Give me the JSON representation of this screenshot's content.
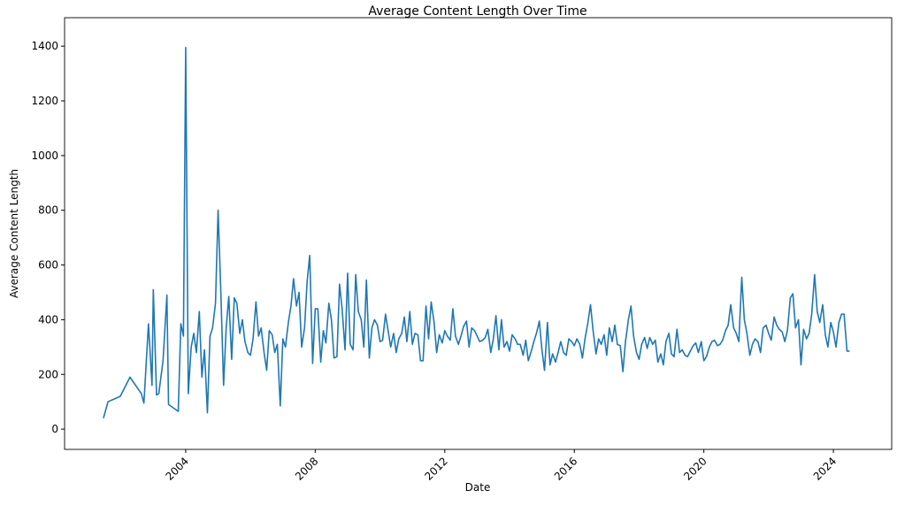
{
  "chart_data": {
    "type": "line",
    "title": "Average Content Length Over Time",
    "x_label": "Date",
    "y_label": "Average Content Length",
    "color": "#1f77b4",
    "x": [
      2001.46,
      2001.6,
      2001.98,
      2002.28,
      2002.63,
      2002.71,
      2002.85,
      2002.96,
      2003.0,
      2003.1,
      2003.17,
      2003.3,
      2003.42,
      2003.47,
      2003.77,
      2003.85,
      2003.93,
      2004.0,
      2004.08,
      2004.17,
      2004.25,
      2004.33,
      2004.42,
      2004.5,
      2004.58,
      2004.67,
      2004.75,
      2004.83,
      2004.92,
      2005.0,
      2005.08,
      2005.17,
      2005.25,
      2005.33,
      2005.42,
      2005.5,
      2005.58,
      2005.67,
      2005.75,
      2005.83,
      2005.92,
      2006.0,
      2006.08,
      2006.17,
      2006.25,
      2006.33,
      2006.42,
      2006.5,
      2006.58,
      2006.67,
      2006.75,
      2006.83,
      2006.92,
      2007.0,
      2007.08,
      2007.17,
      2007.25,
      2007.33,
      2007.42,
      2007.5,
      2007.58,
      2007.67,
      2007.75,
      2007.83,
      2007.92,
      2008.0,
      2008.08,
      2008.17,
      2008.25,
      2008.33,
      2008.42,
      2008.5,
      2008.58,
      2008.67,
      2008.75,
      2008.83,
      2008.92,
      2009.0,
      2009.08,
      2009.17,
      2009.25,
      2009.33,
      2009.42,
      2009.5,
      2009.58,
      2009.67,
      2009.75,
      2009.83,
      2009.92,
      2010.0,
      2010.08,
      2010.17,
      2010.25,
      2010.33,
      2010.42,
      2010.5,
      2010.58,
      2010.67,
      2010.75,
      2010.83,
      2010.92,
      2011.0,
      2011.08,
      2011.17,
      2011.25,
      2011.33,
      2011.42,
      2011.5,
      2011.58,
      2011.67,
      2011.75,
      2011.83,
      2011.92,
      2012.0,
      2012.08,
      2012.17,
      2012.25,
      2012.33,
      2012.42,
      2012.5,
      2012.58,
      2012.67,
      2012.75,
      2012.83,
      2012.92,
      2013.0,
      2013.08,
      2013.17,
      2013.25,
      2013.33,
      2013.42,
      2013.5,
      2013.58,
      2013.67,
      2013.75,
      2013.83,
      2013.92,
      2014.0,
      2014.08,
      2014.17,
      2014.25,
      2014.33,
      2014.42,
      2014.5,
      2014.58,
      2014.67,
      2014.75,
      2014.83,
      2014.92,
      2015.0,
      2015.08,
      2015.17,
      2015.25,
      2015.33,
      2015.42,
      2015.5,
      2015.58,
      2015.67,
      2015.75,
      2015.83,
      2015.92,
      2016.0,
      2016.08,
      2016.17,
      2016.25,
      2016.33,
      2016.42,
      2016.5,
      2016.58,
      2016.67,
      2016.75,
      2016.83,
      2016.92,
      2017.0,
      2017.08,
      2017.17,
      2017.25,
      2017.33,
      2017.42,
      2017.5,
      2017.58,
      2017.67,
      2017.75,
      2017.83,
      2017.92,
      2018.0,
      2018.08,
      2018.17,
      2018.25,
      2018.33,
      2018.42,
      2018.5,
      2018.58,
      2018.67,
      2018.75,
      2018.83,
      2018.92,
      2019.0,
      2019.08,
      2019.17,
      2019.25,
      2019.33,
      2019.42,
      2019.5,
      2019.58,
      2019.67,
      2019.75,
      2019.83,
      2019.92,
      2020.0,
      2020.08,
      2020.17,
      2020.25,
      2020.33,
      2020.42,
      2020.5,
      2020.58,
      2020.67,
      2020.75,
      2020.83,
      2020.92,
      2021.0,
      2021.08,
      2021.17,
      2021.25,
      2021.33,
      2021.42,
      2021.5,
      2021.58,
      2021.67,
      2021.75,
      2021.83,
      2021.92,
      2022.0,
      2022.08,
      2022.17,
      2022.25,
      2022.33,
      2022.42,
      2022.5,
      2022.58,
      2022.67,
      2022.75,
      2022.83,
      2022.92,
      2023.0,
      2023.08,
      2023.17,
      2023.25,
      2023.33,
      2023.42,
      2023.5,
      2023.58,
      2023.67,
      2023.75,
      2023.83,
      2023.92,
      2024.0,
      2024.08,
      2024.17,
      2024.25,
      2024.33,
      2024.42,
      2024.5
    ],
    "values": [
      40,
      100,
      120,
      190,
      130,
      95,
      385,
      160,
      510,
      125,
      130,
      250,
      490,
      90,
      65,
      385,
      340,
      1395,
      130,
      300,
      350,
      280,
      430,
      190,
      290,
      60,
      340,
      370,
      460,
      800,
      520,
      160,
      370,
      485,
      255,
      480,
      460,
      350,
      400,
      320,
      280,
      270,
      330,
      465,
      340,
      370,
      280,
      215,
      360,
      345,
      280,
      310,
      85,
      330,
      300,
      390,
      450,
      550,
      450,
      500,
      300,
      370,
      540,
      635,
      240,
      440,
      440,
      245,
      360,
      315,
      460,
      400,
      260,
      265,
      530,
      440,
      290,
      570,
      310,
      290,
      565,
      430,
      400,
      300,
      545,
      260,
      370,
      400,
      380,
      320,
      325,
      420,
      360,
      300,
      350,
      280,
      330,
      350,
      410,
      320,
      430,
      310,
      350,
      345,
      250,
      250,
      450,
      330,
      465,
      390,
      280,
      345,
      315,
      360,
      340,
      325,
      440,
      340,
      310,
      340,
      375,
      395,
      300,
      370,
      360,
      340,
      320,
      325,
      335,
      365,
      280,
      330,
      415,
      290,
      400,
      300,
      320,
      285,
      345,
      330,
      310,
      310,
      270,
      325,
      250,
      285,
      320,
      350,
      395,
      290,
      215,
      390,
      235,
      275,
      245,
      280,
      320,
      280,
      270,
      330,
      320,
      305,
      330,
      310,
      260,
      330,
      390,
      455,
      360,
      275,
      330,
      310,
      345,
      270,
      370,
      320,
      380,
      310,
      305,
      210,
      320,
      400,
      450,
      340,
      280,
      255,
      310,
      335,
      295,
      335,
      310,
      325,
      245,
      275,
      235,
      320,
      350,
      275,
      265,
      365,
      280,
      290,
      270,
      265,
      285,
      305,
      315,
      280,
      320,
      250,
      265,
      300,
      320,
      325,
      305,
      310,
      325,
      360,
      380,
      455,
      370,
      350,
      320,
      555,
      400,
      350,
      270,
      310,
      330,
      320,
      280,
      370,
      380,
      350,
      325,
      410,
      380,
      365,
      355,
      320,
      360,
      480,
      495,
      370,
      400,
      235,
      365,
      330,
      350,
      420,
      565,
      430,
      390,
      455,
      345,
      300,
      390,
      355,
      300,
      390,
      420,
      420,
      285,
      285
    ],
    "xlim": [
      2000.26,
      2025.8
    ],
    "xticks": [
      2004,
      2008,
      2012,
      2016,
      2020,
      2024
    ],
    "ylim": [
      -74,
      1504
    ],
    "yticks": [
      0,
      200,
      400,
      600,
      800,
      1000,
      1200,
      1400
    ],
    "grid": false
  }
}
